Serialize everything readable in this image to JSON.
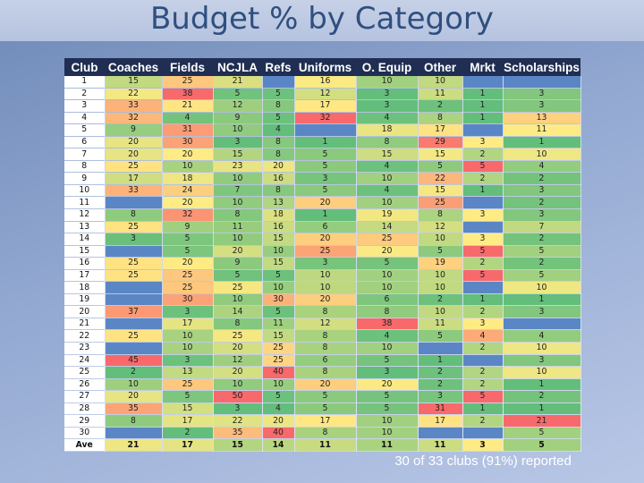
{
  "slide": {
    "title": "Budget % by Category",
    "note": "30 of 33 clubs (91%) reported"
  },
  "table": {
    "headers": [
      "Club",
      "Coaches",
      "Fields",
      "NCJLA",
      "Refs",
      "Uniforms",
      "O. Equip",
      "Other",
      "Mrkt",
      "Scholarships"
    ],
    "rows": [
      [
        "1",
        "15",
        "25",
        "21",
        "",
        "16",
        "10",
        "10",
        "",
        ""
      ],
      [
        "2",
        "22",
        "38",
        "5",
        "5",
        "12",
        "3",
        "11",
        "1",
        "3"
      ],
      [
        "3",
        "33",
        "21",
        "12",
        "8",
        "17",
        "3",
        "2",
        "1",
        "3"
      ],
      [
        "4",
        "32",
        "4",
        "9",
        "5",
        "32",
        "4",
        "8",
        "1",
        "13"
      ],
      [
        "5",
        "9",
        "31",
        "10",
        "4",
        "",
        "18",
        "17",
        "",
        "11"
      ],
      [
        "6",
        "20",
        "30",
        "3",
        "8",
        "1",
        "8",
        "29",
        "3",
        "1"
      ],
      [
        "7",
        "20",
        "20",
        "15",
        "8",
        "5",
        "15",
        "15",
        "2",
        "10"
      ],
      [
        "8",
        "25",
        "10",
        "23",
        "20",
        "5",
        "4",
        "5",
        "5",
        "4"
      ],
      [
        "9",
        "17",
        "18",
        "10",
        "16",
        "3",
        "10",
        "22",
        "2",
        "2"
      ],
      [
        "10",
        "33",
        "24",
        "7",
        "8",
        "5",
        "4",
        "15",
        "1",
        "3"
      ],
      [
        "11",
        "",
        "20",
        "10",
        "13",
        "20",
        "10",
        "25",
        "",
        "2"
      ],
      [
        "12",
        "8",
        "32",
        "8",
        "18",
        "1",
        "19",
        "8",
        "3",
        "3"
      ],
      [
        "13",
        "25",
        "9",
        "11",
        "16",
        "6",
        "14",
        "12",
        "",
        "7"
      ],
      [
        "14",
        "3",
        "5",
        "10",
        "15",
        "20",
        "25",
        "10",
        "3",
        "2"
      ],
      [
        "15",
        "",
        "5",
        "20",
        "10",
        "25",
        "20",
        "5",
        "5",
        "5"
      ],
      [
        "16",
        "25",
        "20",
        "9",
        "15",
        "3",
        "5",
        "19",
        "2",
        "2"
      ],
      [
        "17",
        "25",
        "25",
        "5",
        "5",
        "10",
        "10",
        "10",
        "5",
        "5"
      ],
      [
        "18",
        "",
        "25",
        "25",
        "10",
        "10",
        "10",
        "10",
        "",
        "10"
      ],
      [
        "19",
        "",
        "30",
        "10",
        "30",
        "20",
        "6",
        "2",
        "1",
        "1"
      ],
      [
        "20",
        "37",
        "3",
        "14",
        "5",
        "8",
        "8",
        "10",
        "2",
        "3"
      ],
      [
        "21",
        "",
        "17",
        "8",
        "11",
        "12",
        "38",
        "11",
        "3",
        ""
      ],
      [
        "22",
        "25",
        "10",
        "25",
        "15",
        "8",
        "4",
        "5",
        "4",
        "4"
      ],
      [
        "23",
        "",
        "10",
        "20",
        "25",
        "8",
        "10",
        "",
        "2",
        "10"
      ],
      [
        "24",
        "45",
        "3",
        "12",
        "25",
        "6",
        "5",
        "1",
        "",
        "3"
      ],
      [
        "25",
        "2",
        "13",
        "20",
        "40",
        "8",
        "3",
        "2",
        "2",
        "10"
      ],
      [
        "26",
        "10",
        "25",
        "10",
        "10",
        "20",
        "20",
        "2",
        "2",
        "1"
      ],
      [
        "27",
        "20",
        "5",
        "50",
        "5",
        "5",
        "5",
        "3",
        "5",
        "2"
      ],
      [
        "28",
        "35",
        "15",
        "3",
        "4",
        "5",
        "5",
        "31",
        "1",
        "1"
      ],
      [
        "29",
        "8",
        "17",
        "22",
        "20",
        "17",
        "10",
        "17",
        "2",
        "21"
      ],
      [
        "30",
        "",
        "2",
        "35",
        "40",
        "8",
        "10",
        "",
        "",
        "5"
      ],
      [
        "Ave",
        "21",
        "17",
        "15",
        "14",
        "11",
        "11",
        "11",
        "3",
        "5"
      ]
    ],
    "colors": {
      "header_bg": "#1f2e52",
      "scale_low": "#63be7b",
      "scale_mid": "#ffeb84",
      "scale_high": "#f8696b",
      "empty_cell": "#5b86c5"
    }
  }
}
